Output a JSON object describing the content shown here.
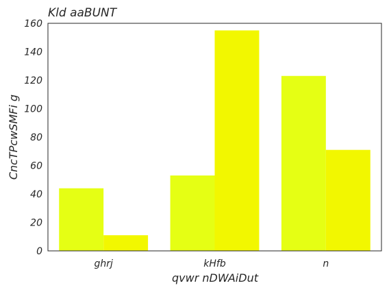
{
  "chart_data": {
    "type": "bar",
    "title": "Kld  aaBUNT",
    "xlabel": "qvwr nDWAiDut",
    "ylabel": "CncTPcwSMFi g",
    "categories": [
      "ghrj",
      "kHfb",
      "n"
    ],
    "series": [
      {
        "values": [
          44,
          53,
          123
        ],
        "color": "#e5ff14"
      },
      {
        "values": [
          11,
          155,
          71
        ],
        "color": "#f2f700"
      }
    ],
    "ylim": [
      0,
      160
    ],
    "yticks": [
      0,
      20,
      40,
      60,
      80,
      100,
      120,
      140,
      160
    ],
    "grid": false,
    "legend": false
  }
}
